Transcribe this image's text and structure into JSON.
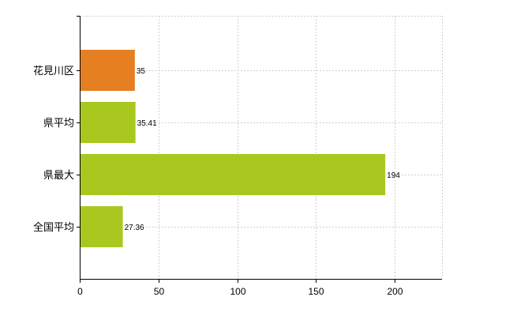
{
  "chart_data": {
    "type": "bar",
    "orientation": "horizontal",
    "categories": [
      "花見川区",
      "県平均",
      "県最大",
      "全国平均"
    ],
    "values": [
      35,
      35.41,
      194,
      27.36
    ],
    "value_labels": [
      "35",
      "35.41",
      "194",
      "27.36"
    ],
    "bar_colors": [
      "#e67e22",
      "#a8c820",
      "#a8c820",
      "#a8c820"
    ],
    "xlim": [
      0,
      230
    ],
    "xticks": [
      0,
      50,
      100,
      150,
      200
    ],
    "grid": true,
    "title": "",
    "xlabel": "",
    "ylabel": ""
  }
}
